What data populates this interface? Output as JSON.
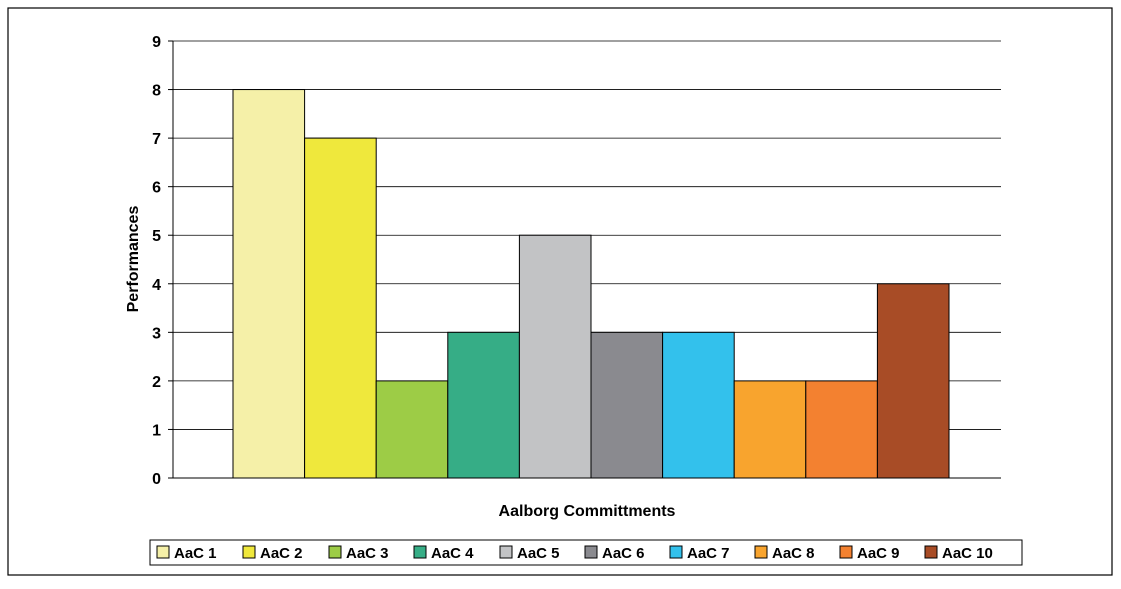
{
  "chart_data": {
    "type": "bar",
    "title": "",
    "xlabel": "Aalborg Committments",
    "ylabel": "Performances",
    "ylim": [
      0,
      9
    ],
    "yticks": [
      0,
      1,
      2,
      3,
      4,
      5,
      6,
      7,
      8,
      9
    ],
    "grid": true,
    "legend_position": "bottom",
    "series": [
      {
        "name": "AaC 1",
        "value": 8,
        "color": "#f5f0a8"
      },
      {
        "name": "AaC 2",
        "value": 7,
        "color": "#efe83c"
      },
      {
        "name": "AaC 3",
        "value": 2,
        "color": "#9dcc46"
      },
      {
        "name": "AaC 4",
        "value": 3,
        "color": "#36ad86"
      },
      {
        "name": "AaC 5",
        "value": 5,
        "color": "#c2c3c5"
      },
      {
        "name": "AaC 6",
        "value": 3,
        "color": "#8a8a8f"
      },
      {
        "name": "AaC 7",
        "value": 3,
        "color": "#33c1ec"
      },
      {
        "name": "AaC 8",
        "value": 2,
        "color": "#f8a42e"
      },
      {
        "name": "AaC 9",
        "value": 2,
        "color": "#f38130"
      },
      {
        "name": "AaC 10",
        "value": 4,
        "color": "#a84c26"
      }
    ]
  }
}
